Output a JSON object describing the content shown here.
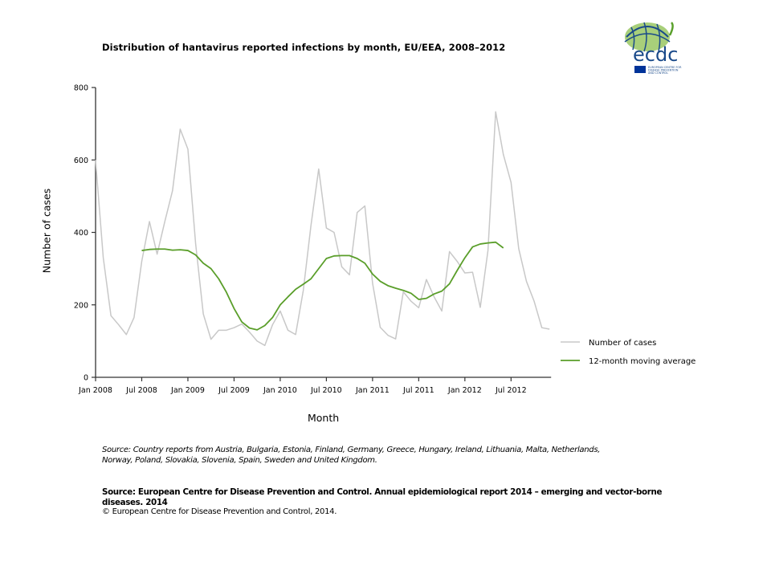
{
  "title": "Distribution  of hantavirus reported infections  by month, EU/EEA,  2008–2012",
  "logo": {
    "text": "ecdc",
    "subtitle_lines": [
      "EUROPEAN CENTRE FOR",
      "DISEASE PREVENTION",
      "AND CONTROL"
    ]
  },
  "axes": {
    "ylabel": "Number of cases",
    "xlabel": "Month"
  },
  "legend": {
    "items": [
      {
        "label": "Number of cases",
        "color": "#c8c8c8"
      },
      {
        "label": "12-month moving average",
        "color": "#5a9e2a"
      }
    ]
  },
  "footer": {
    "source_countries": "Source: Country reports from Austria, Bulgaria, Estonia, Finland, Germany, Greece, Hungary, Ireland, Lithuania, Malta, Netherlands, Norway, Poland, Slovakia, Slovenia, Spain, Sweden and United Kingdom.",
    "source_ecdc": "Source: European Centre for Disease Prevention and Control.  Annual epidemiological report 2014 – emerging and vector-borne diseases. 2014",
    "copyright": "© European Centre for Disease Prevention and Control, 2014."
  },
  "chart_data": {
    "type": "line",
    "title": "Distribution of hantavirus reported infections by month, EU/EEA, 2008–2012",
    "xlabel": "Month",
    "ylabel": "Number of cases",
    "ylim": [
      0,
      800
    ],
    "yticks": [
      0,
      200,
      400,
      600,
      800
    ],
    "xtick_labels": [
      "Jan 2008",
      "Jul 2008",
      "Jan 2009",
      "Jul 2009",
      "Jan 2010",
      "Jul 2010",
      "Jan 2011",
      "Jul 2011",
      "Jan 2012",
      "Jul 2012"
    ],
    "grid": false,
    "legend_position": "right",
    "x_start": "Jan 2008",
    "x_end": "Dec 2012",
    "series": [
      {
        "name": "Number of cases",
        "color": "#c8c8c8",
        "start_month_index": 0,
        "values": [
          600,
          330,
          170,
          145,
          118,
          165,
          320,
          430,
          340,
          430,
          515,
          685,
          630,
          370,
          175,
          105,
          130,
          130,
          137,
          147,
          125,
          100,
          88,
          145,
          183,
          130,
          118,
          240,
          420,
          575,
          412,
          400,
          305,
          283,
          455,
          473,
          260,
          138,
          116,
          106,
          236,
          210,
          192,
          270,
          222,
          183,
          347,
          320,
          288,
          290,
          193,
          350,
          733,
          615,
          538,
          355,
          265,
          210,
          137,
          133
        ]
      },
      {
        "name": "12-month moving average",
        "color": "#5a9e2a",
        "start_month_index": 6,
        "values": [
          350,
          353,
          354,
          354,
          351,
          352,
          350,
          338,
          315,
          300,
          272,
          235,
          190,
          153,
          136,
          131,
          143,
          165,
          200,
          222,
          243,
          257,
          272,
          300,
          328,
          335,
          336,
          336,
          328,
          315,
          285,
          265,
          253,
          246,
          240,
          232,
          215,
          218,
          230,
          238,
          258,
          295,
          330,
          360,
          368,
          371,
          373,
          357
        ]
      }
    ]
  }
}
